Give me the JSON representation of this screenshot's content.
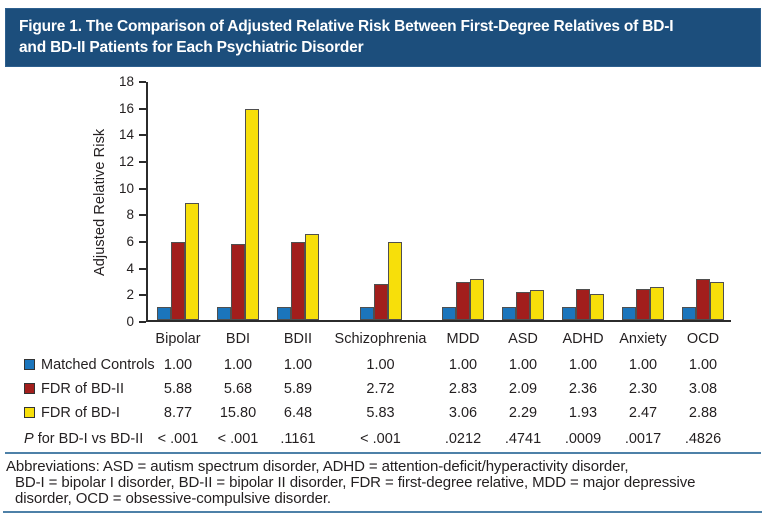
{
  "header": {
    "title_lines": [
      "Figure 1. The Comparison of Adjusted Relative Risk Between First-Degree Relatives of BD-I",
      "and BD-II Patients for Each Psychiatric Disorder"
    ],
    "bg_color": "#1c4e7c",
    "text_color": "#ffffff"
  },
  "chart_data": {
    "type": "bar",
    "title": "Figure 1. The Comparison of Adjusted Relative Risk Between First-Degree Relatives of BD-I and BD-II Patients for Each Psychiatric Disorder",
    "xlabel": "",
    "ylabel": "Adjusted Relative Risk",
    "ylim": [
      0,
      18
    ],
    "yticks": [
      0,
      2,
      4,
      6,
      8,
      10,
      12,
      14,
      16,
      18
    ],
    "grid": false,
    "legend_position": "table-below",
    "categories": [
      "Bipolar",
      "BDI",
      "BDII",
      "Schizophrenia",
      "MDD",
      "ASD",
      "ADHD",
      "Anxiety",
      "OCD"
    ],
    "series": [
      {
        "name": "Matched Controls",
        "color": "#1b75bc",
        "values": [
          1.0,
          1.0,
          1.0,
          1.0,
          1.0,
          1.0,
          1.0,
          1.0,
          1.0
        ]
      },
      {
        "name": "FDR of BD-II",
        "color": "#a21e1c",
        "values": [
          5.88,
          5.68,
          5.89,
          2.72,
          2.83,
          2.09,
          2.36,
          2.3,
          3.08
        ]
      },
      {
        "name": "FDR of BD-I",
        "color": "#f7df0a",
        "values": [
          8.77,
          15.8,
          6.48,
          5.83,
          3.06,
          2.29,
          1.93,
          2.47,
          2.88
        ]
      }
    ]
  },
  "table": {
    "p_row": {
      "label_italic": "P",
      "label_rest": " for BD-I vs BD-II",
      "values": [
        "< .001",
        "< .001",
        ".1161",
        "< .001",
        ".0212",
        ".4741",
        ".0009",
        ".0017",
        ".4826"
      ]
    }
  },
  "footnote": {
    "lines": [
      "Abbreviations: ASD = autism spectrum disorder, ADHD = attention-deficit/hyperactivity disorder,",
      "BD-I = bipolar I disorder, BD-II = bipolar II disorder, FDR = first-degree relative, MDD = major depressive",
      "disorder, OCD = obsessive-compulsive disorder."
    ]
  },
  "colors": {
    "rule_blue": "#4e81a8",
    "axis": "#2b2b2b",
    "text": "#231f20",
    "bar_border": "#4f4f4f"
  }
}
